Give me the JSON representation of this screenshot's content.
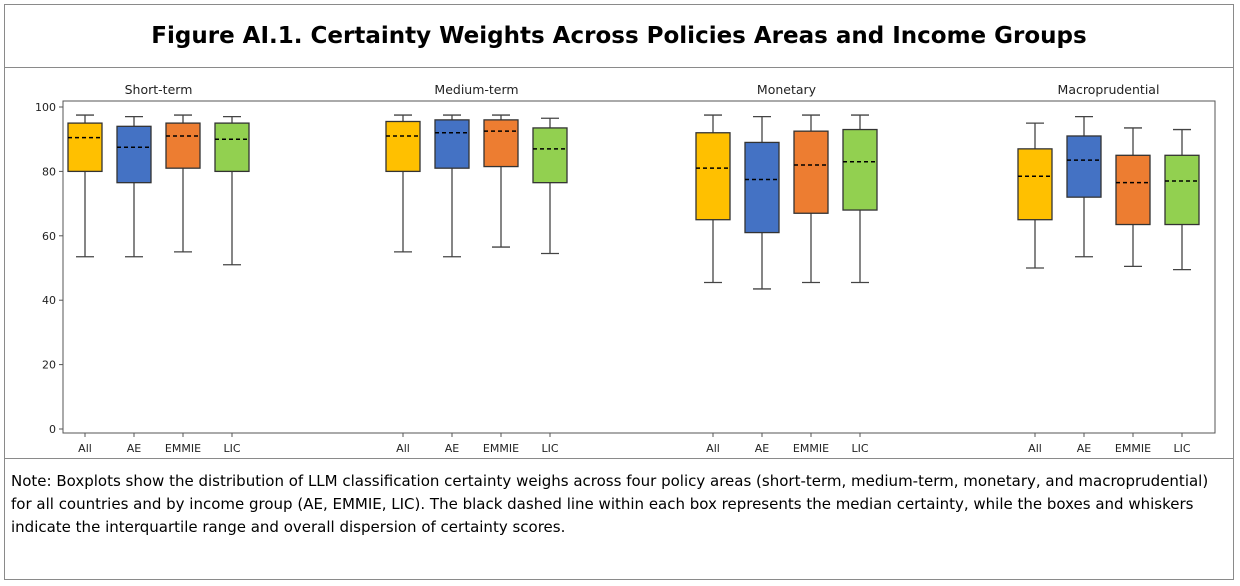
{
  "figure": {
    "title": "Figure AI.1. Certainty Weights Across Policies Areas and Income Groups",
    "note": "Note: Boxplots show the distribution of LLM classification certainty weighs across four policy areas (short-term, medium-term, monetary, and macroprudential) for all countries and by income group (AE, EMMIE, LIC). The black dashed line within each box represents the median certainty, while the boxes and whiskers indicate the interquartile range and overall dispersion of certainty scores."
  },
  "chart_data": {
    "type": "boxplot",
    "y_ticks": [
      0,
      20,
      40,
      60,
      80,
      100
    ],
    "ylim": [
      0,
      100
    ],
    "grid": false,
    "categories": [
      "All",
      "AE",
      "EMMIE",
      "LIC"
    ],
    "colors": {
      "All": "#FFC000",
      "AE": "#4472C4",
      "EMMIE": "#ED7D31",
      "LIC": "#92D050"
    },
    "panels": [
      {
        "title": "Short-term",
        "boxes": [
          {
            "group": "All",
            "whisker_low": 53.5,
            "q1": 80,
            "median": 90.5,
            "q3": 95,
            "whisker_high": 97.5
          },
          {
            "group": "AE",
            "whisker_low": 53.5,
            "q1": 76.5,
            "median": 87.5,
            "q3": 94,
            "whisker_high": 97
          },
          {
            "group": "EMMIE",
            "whisker_low": 55,
            "q1": 81,
            "median": 91,
            "q3": 95,
            "whisker_high": 97.5
          },
          {
            "group": "LIC",
            "whisker_low": 51,
            "q1": 80,
            "median": 90,
            "q3": 95,
            "whisker_high": 97
          }
        ]
      },
      {
        "title": "Medium-term",
        "boxes": [
          {
            "group": "All",
            "whisker_low": 55,
            "q1": 80,
            "median": 91,
            "q3": 95.5,
            "whisker_high": 97.5
          },
          {
            "group": "AE",
            "whisker_low": 53.5,
            "q1": 81,
            "median": 92,
            "q3": 96,
            "whisker_high": 97.5
          },
          {
            "group": "EMMIE",
            "whisker_low": 56.5,
            "q1": 81.5,
            "median": 92.5,
            "q3": 96,
            "whisker_high": 97.5
          },
          {
            "group": "LIC",
            "whisker_low": 54.5,
            "q1": 76.5,
            "median": 87,
            "q3": 93.5,
            "whisker_high": 96.5
          }
        ]
      },
      {
        "title": "Monetary",
        "boxes": [
          {
            "group": "All",
            "whisker_low": 45.5,
            "q1": 65,
            "median": 81,
            "q3": 92,
            "whisker_high": 97.5
          },
          {
            "group": "AE",
            "whisker_low": 43.5,
            "q1": 61,
            "median": 77.5,
            "q3": 89,
            "whisker_high": 97
          },
          {
            "group": "EMMIE",
            "whisker_low": 45.5,
            "q1": 67,
            "median": 82,
            "q3": 92.5,
            "whisker_high": 97.5
          },
          {
            "group": "LIC",
            "whisker_low": 45.5,
            "q1": 68,
            "median": 83,
            "q3": 93,
            "whisker_high": 97.5
          }
        ]
      },
      {
        "title": "Macroprudential",
        "boxes": [
          {
            "group": "All",
            "whisker_low": 50,
            "q1": 65,
            "median": 78.5,
            "q3": 87,
            "whisker_high": 95
          },
          {
            "group": "AE",
            "whisker_low": 53.5,
            "q1": 72,
            "median": 83.5,
            "q3": 91,
            "whisker_high": 97
          },
          {
            "group": "EMMIE",
            "whisker_low": 50.5,
            "q1": 63.5,
            "median": 76.5,
            "q3": 85,
            "whisker_high": 93.5
          },
          {
            "group": "LIC",
            "whisker_low": 49.5,
            "q1": 63.5,
            "median": 77,
            "q3": 85,
            "whisker_high": 93
          }
        ]
      }
    ]
  }
}
